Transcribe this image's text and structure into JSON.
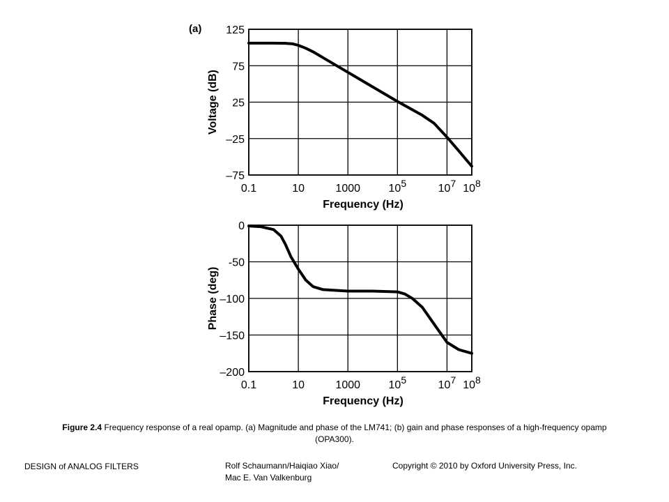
{
  "panel_label": "(a)",
  "caption": {
    "figure_ref": "Figure 2.4",
    "text": " Frequency response of a real opamp. (a) Magnitude and phase of the LM741; (b) gain and phase responses of a high-frequency opamp (OPA300)."
  },
  "footer": {
    "left": "DESIGN of ANALOG FILTERS",
    "authors_line1": "Rolf Schaumann/Haiqiao Xiao/",
    "authors_line2": "Mac E. Van Valkenburg",
    "copyright": "Copyright © 2010 by Oxford University Press, Inc."
  },
  "colors": {
    "line": "#000000",
    "grid": "#000000",
    "background": "#ffffff"
  },
  "chart_data": [
    {
      "type": "line",
      "title": "",
      "xlabel": "Frequency (Hz)",
      "ylabel": "Voltage (dB)",
      "x_scale": "log",
      "xlim": [
        0.1,
        100000000
      ],
      "ylim": [
        -75,
        125
      ],
      "x_ticks": [
        {
          "value": 0.1,
          "base": "0.1",
          "exp": ""
        },
        {
          "value": 10,
          "base": "10",
          "exp": ""
        },
        {
          "value": 1000,
          "base": "1000",
          "exp": ""
        },
        {
          "value": 100000,
          "base": "10",
          "exp": "5"
        },
        {
          "value": 10000000,
          "base": "10",
          "exp": "7"
        },
        {
          "value": 100000000,
          "base": "10",
          "exp": "8"
        }
      ],
      "y_ticks": [
        {
          "value": 125,
          "label": "125"
        },
        {
          "value": 75,
          "label": "75"
        },
        {
          "value": 25,
          "label": "25"
        },
        {
          "value": -25,
          "label": "–25"
        },
        {
          "value": -75,
          "label": "–75"
        }
      ],
      "grid": true,
      "legend": "none",
      "x": [
        0.1,
        1,
        3,
        6,
        10,
        20,
        40,
        100,
        1000,
        10000,
        100000,
        1000000,
        3000000,
        10000000,
        30000000,
        100000000
      ],
      "y": [
        106,
        106,
        105.8,
        105,
        103,
        99,
        94,
        86,
        66,
        46,
        26,
        7,
        -4,
        -23,
        -42,
        -63
      ]
    },
    {
      "type": "line",
      "title": "",
      "xlabel": "Frequency (Hz)",
      "ylabel": "Phase (deg)",
      "x_scale": "log",
      "xlim": [
        0.1,
        100000000
      ],
      "ylim": [
        -200,
        0
      ],
      "x_ticks": [
        {
          "value": 0.1,
          "base": "0.1",
          "exp": ""
        },
        {
          "value": 10,
          "base": "10",
          "exp": ""
        },
        {
          "value": 1000,
          "base": "1000",
          "exp": ""
        },
        {
          "value": 100000,
          "base": "10",
          "exp": "5"
        },
        {
          "value": 10000000,
          "base": "10",
          "exp": "7"
        },
        {
          "value": 100000000,
          "base": "10",
          "exp": "8"
        }
      ],
      "y_ticks": [
        {
          "value": 0,
          "label": "0"
        },
        {
          "value": -50,
          "label": "-50"
        },
        {
          "value": -100,
          "label": "–100"
        },
        {
          "value": -150,
          "label": "–150"
        },
        {
          "value": -200,
          "label": "–200"
        }
      ],
      "grid": true,
      "legend": "none",
      "x": [
        0.1,
        0.3,
        1,
        2,
        3,
        5,
        10,
        20,
        40,
        100,
        1000,
        10000,
        100000,
        200000,
        400000,
        1000000,
        3000000,
        10000000,
        30000000,
        100000000
      ],
      "y": [
        -1,
        -2,
        -6,
        -15,
        -26,
        -43,
        -60,
        -75,
        -84,
        -88,
        -90,
        -90,
        -91,
        -94,
        -100,
        -112,
        -135,
        -160,
        -170,
        -175
      ]
    }
  ]
}
